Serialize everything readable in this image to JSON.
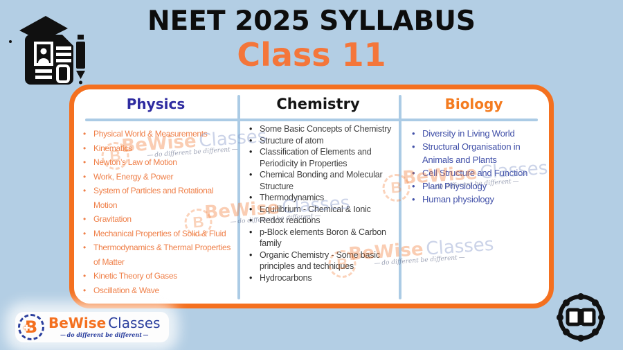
{
  "header": {
    "title": "NEET 2025 SYLLABUS",
    "subtitle": "Class 11"
  },
  "columns": [
    {
      "title": "Physics",
      "items": [
        "Physical World & Measurements",
        "Kinematics",
        "Newton’s Law of Motion",
        "Work, Energy & Power",
        "System of Particles and Rotational Motion",
        "Gravitation",
        "Mechanical Properties of Solid & Fluid",
        "Thermodynamics & Thermal Properties of Matter",
        "Kinetic Theory of Gases",
        "Oscillation & Wave"
      ]
    },
    {
      "title": "Chemistry",
      "items": [
        "Some Basic Concepts of Chemistry",
        "Structure of atom",
        "Classification of Elements and Periodicity in Properties",
        "Chemical Bonding and Molecular Structure",
        "Thermodynamics",
        "Equilibrium - Chemical & Ionic",
        "Redox reactions",
        "p-Block elements Boron & Carbon family",
        "Organic Chemistry - Some basic principles and techniques",
        "Hydrocarbons"
      ]
    },
    {
      "title": "Biology",
      "items": [
        "Diversity in Living World",
        "Structural Organisation in Animals and Plants",
        "Cell Structure and Function",
        "Plant Physiology",
        "Human physiology"
      ]
    }
  ],
  "watermark": {
    "monogram": "B",
    "brand_bold": "BeWise",
    "brand_light": "Classes",
    "tagline": "do different be different"
  },
  "footer_logo": {
    "monogram": "B",
    "brand_bold": "BeWise",
    "brand_light": "Classes",
    "tagline": "do different be different"
  },
  "colors": {
    "background": "#b3cee4",
    "card_border": "#f4701f",
    "title": "#0d0d0d",
    "subtitle": "#f4763a",
    "physics_title": "#2e2ba0",
    "physics_items": "#ef7f48",
    "chemistry_title": "#141414",
    "chemistry_items": "#3d3d3d",
    "biology_title": "#f47b1f",
    "biology_items": "#4150a8",
    "divider": "#abcbe5"
  }
}
